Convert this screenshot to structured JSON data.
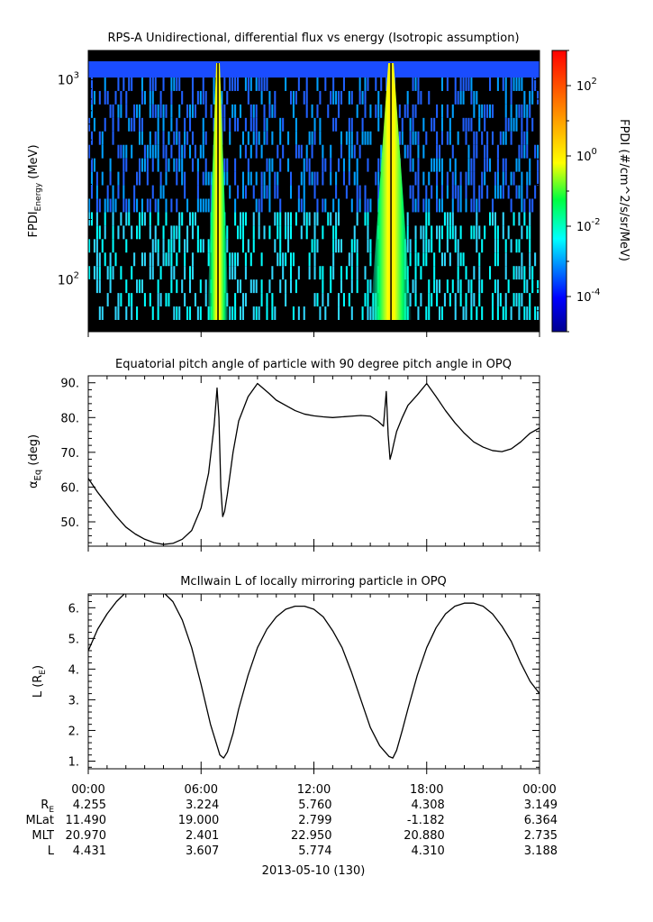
{
  "panel1": {
    "title": "RPS-A Unidirectional, differential flux vs energy (Isotropic assumption)",
    "ylabel_main": "FPDI",
    "ylabel_sub": "Energy",
    "ylabel_unit": " (MeV)",
    "ytick_labels": [
      {
        "base": "10",
        "exp": "2"
      },
      {
        "base": "10",
        "exp": "3"
      }
    ],
    "colorbar_label": "FPDI (#/cm^2/s/sr/MeV)",
    "colorbar_ticks": [
      {
        "base": "10",
        "exp": "2"
      },
      {
        "base": "10",
        "exp": "0"
      },
      {
        "base": "10",
        "exp": "-2"
      },
      {
        "base": "10",
        "exp": "-4"
      }
    ]
  },
  "panel2": {
    "title": "Equatorial pitch angle of particle with 90 degree pitch angle in OPQ",
    "ylabel_main": "α",
    "ylabel_sub": "Eq",
    "ylabel_unit": " (deg)",
    "ytick_labels": [
      "50.",
      "60.",
      "70.",
      "80.",
      "90."
    ]
  },
  "panel3": {
    "title": "McIlwain L of locally mirroring particle in OPQ",
    "ylabel_main": "L (R",
    "ylabel_sub": "E",
    "ylabel_unit": ")",
    "ytick_labels": [
      "1.",
      "2.",
      "3.",
      "4.",
      "5.",
      "6."
    ]
  },
  "time_axis": {
    "tick_labels": [
      "00:00",
      "06:00",
      "12:00",
      "18:00",
      "00:00"
    ],
    "date_label": "2013-05-10 (130)"
  },
  "ephemeris": {
    "row_labels": [
      {
        "main": "R",
        "sub": "E"
      },
      {
        "main": "MLat",
        "sub": ""
      },
      {
        "main": "MLT",
        "sub": ""
      },
      {
        "main": "L",
        "sub": ""
      }
    ],
    "rows": [
      [
        "4.255",
        "3.224",
        "5.760",
        "4.308",
        "3.149"
      ],
      [
        "11.490",
        "19.000",
        "2.799",
        "-1.182",
        "6.364"
      ],
      [
        "20.970",
        "2.401",
        "22.950",
        "20.880",
        "2.735"
      ],
      [
        "4.431",
        "3.607",
        "5.774",
        "4.310",
        "3.188"
      ]
    ]
  },
  "chart_data": [
    {
      "type": "heatmap",
      "title": "RPS-A Unidirectional, differential flux vs energy (Isotropic assumption)",
      "xlabel": "",
      "ylabel": "FPDI Energy (MeV)",
      "x_unit": "hours from 2013-05-10 00:00",
      "xlim": [
        0,
        24
      ],
      "ylim": [
        55,
        1400
      ],
      "y_scale": "log",
      "colorbar": {
        "label": "FPDI (#/cm^2/s/sr/MeV)",
        "scale": "log",
        "range": [
          1e-05,
          1000
        ]
      },
      "enhancement_bands": [
        {
          "center": 6.9,
          "peak_flux": 10
        },
        {
          "center": 16.1,
          "peak_flux": 10
        }
      ]
    },
    {
      "type": "line",
      "title": "Equatorial pitch angle of particle with 90 degree pitch angle in OPQ",
      "ylabel": "αEq (deg)",
      "x_unit": "hours from 2013-05-10 00:00",
      "xlim": [
        0,
        24
      ],
      "ylim": [
        43,
        92
      ],
      "x": [
        0,
        0.5,
        1,
        1.5,
        2,
        2.5,
        3,
        3.5,
        4,
        4.5,
        5,
        5.5,
        6,
        6.4,
        6.7,
        6.85,
        6.95,
        7.05,
        7.15,
        7.25,
        7.4,
        7.7,
        8,
        8.5,
        9,
        9.6,
        10,
        10.5,
        11,
        11.5,
        12,
        12.5,
        13,
        13.5,
        14,
        14.5,
        15,
        15.4,
        15.7,
        15.85,
        15.95,
        16.05,
        16.15,
        16.25,
        16.4,
        16.7,
        17,
        17.5,
        18,
        18.5,
        19,
        19.5,
        20,
        20.5,
        21,
        21.5,
        22,
        22.5,
        23,
        23.5,
        24
      ],
      "y": [
        62.5,
        58.5,
        55,
        51.5,
        48.5,
        46.5,
        45,
        44,
        43.5,
        43.8,
        45,
        47.5,
        54,
        64,
        78,
        88.5,
        80,
        60,
        51.5,
        53,
        58,
        70,
        79,
        86,
        89.8,
        87,
        85,
        83.5,
        82,
        81,
        80.5,
        80.2,
        80,
        80.2,
        80.4,
        80.6,
        80.4,
        79,
        77.5,
        87.5,
        75,
        68,
        70,
        72.5,
        76,
        80,
        83.5,
        86.5,
        89.8,
        86,
        82,
        78.5,
        75.5,
        73,
        71.5,
        70.5,
        70.2,
        71,
        73,
        75.5,
        77
      ]
    },
    {
      "type": "line",
      "title": "McIlwain L of locally mirroring particle in OPQ",
      "ylabel": "L (RE)",
      "x_unit": "hours from 2013-05-10 00:00",
      "xlim": [
        0,
        24
      ],
      "ylim": [
        0.75,
        6.45
      ],
      "x": [
        0,
        0.5,
        1,
        1.5,
        2,
        2.5,
        3,
        3.5,
        4,
        4.5,
        5,
        5.5,
        6,
        6.5,
        7,
        7.2,
        7.4,
        7.7,
        8,
        8.5,
        9,
        9.5,
        10,
        10.5,
        11,
        11.5,
        12,
        12.5,
        13,
        13.5,
        14,
        14.5,
        15,
        15.5,
        16,
        16.2,
        16.4,
        16.7,
        17,
        17.5,
        18,
        18.5,
        19,
        19.5,
        20,
        20.5,
        21,
        21.5,
        22,
        22.5,
        23,
        23.5,
        24
      ],
      "y": [
        4.6,
        5.3,
        5.8,
        6.2,
        6.5,
        6.6,
        6.6,
        6.6,
        6.5,
        6.2,
        5.6,
        4.7,
        3.5,
        2.2,
        1.2,
        1.1,
        1.3,
        1.9,
        2.7,
        3.8,
        4.7,
        5.3,
        5.7,
        5.95,
        6.05,
        6.05,
        5.95,
        5.7,
        5.25,
        4.7,
        3.9,
        3.0,
        2.1,
        1.5,
        1.15,
        1.1,
        1.35,
        2.0,
        2.7,
        3.8,
        4.7,
        5.35,
        5.8,
        6.05,
        6.15,
        6.15,
        6.05,
        5.8,
        5.4,
        4.9,
        4.2,
        3.6,
        3.2
      ]
    }
  ]
}
